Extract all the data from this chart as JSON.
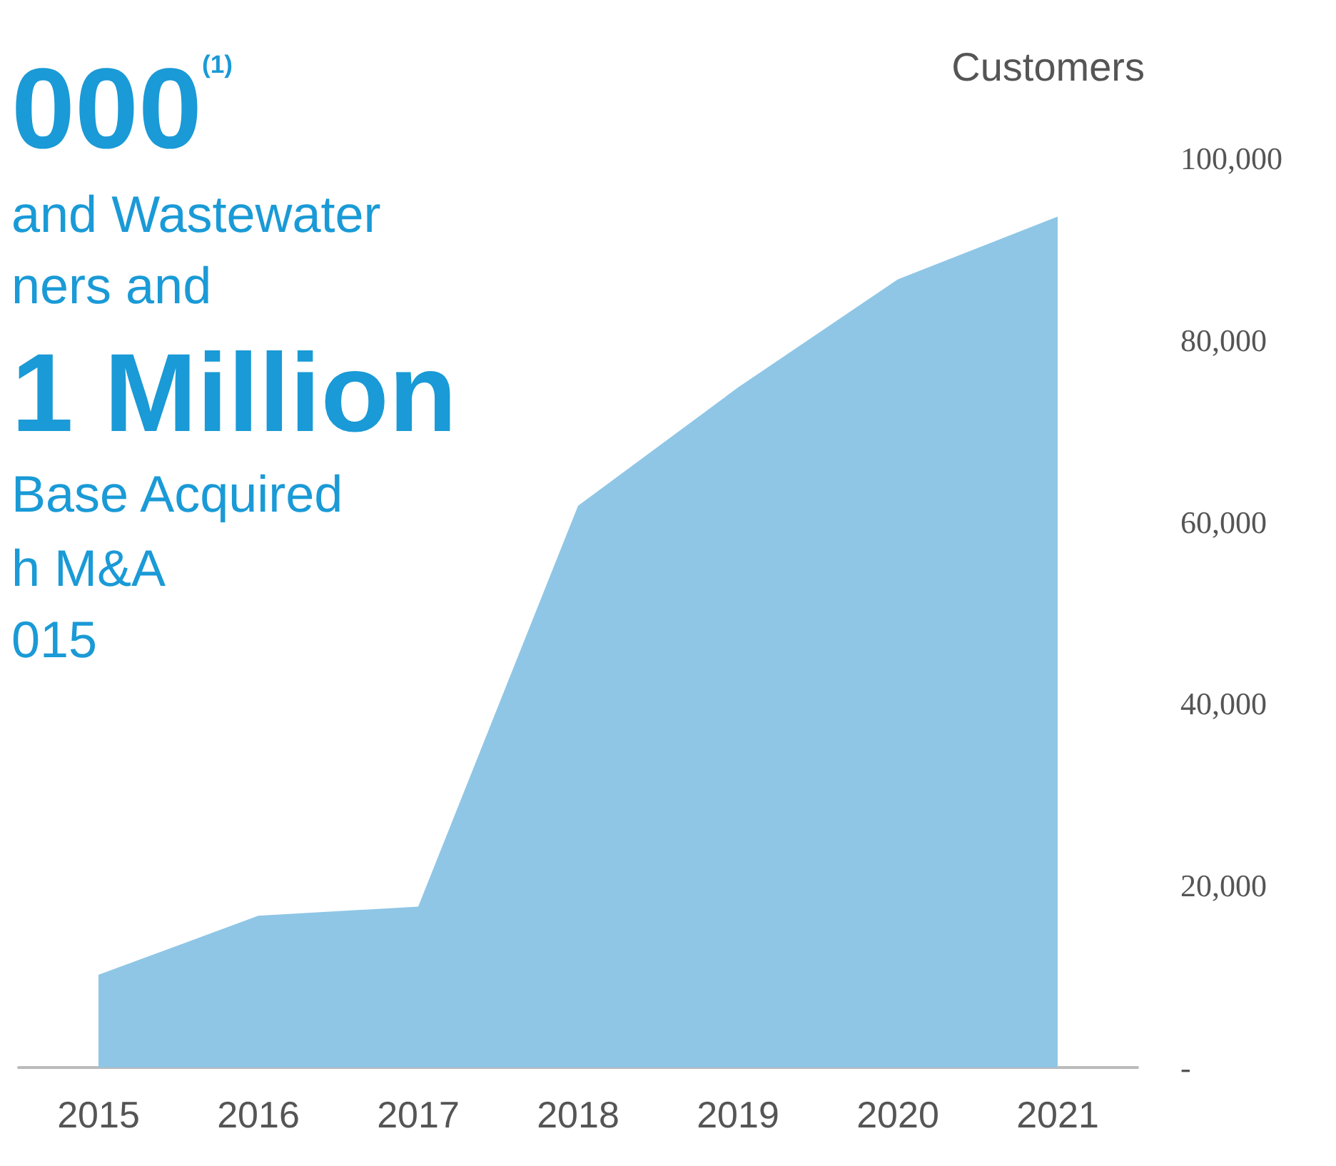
{
  "chart_data": {
    "type": "area",
    "ylabel": "Customers",
    "annotations": [
      "000$^{(1)}$",
      "and Wastewater",
      "ners and",
      "1 Million",
      "Base Acquired",
      "h M&A",
      "015"
    ],
    "categories": [
      "2015",
      "2016",
      "2017",
      "2018",
      "2019",
      "2020",
      "2021"
    ],
    "series": [
      {
        "color": "#8fc6e6",
        "values": [
          10200,
          16700,
          17700,
          61800,
          74800,
          86700,
          93600
        ]
      }
    ],
    "ylim": [
      0,
      100000
    ],
    "yticks": [
      {
        "value": 0,
        "label": "-"
      },
      {
        "value": 20000,
        "label": "20,000"
      },
      {
        "value": 40000,
        "label": "40,000"
      },
      {
        "value": 60000,
        "label": "60,000"
      },
      {
        "value": 80000,
        "label": "80,000"
      },
      {
        "value": 100000,
        "label": "100,000"
      }
    ],
    "grid": false
  }
}
